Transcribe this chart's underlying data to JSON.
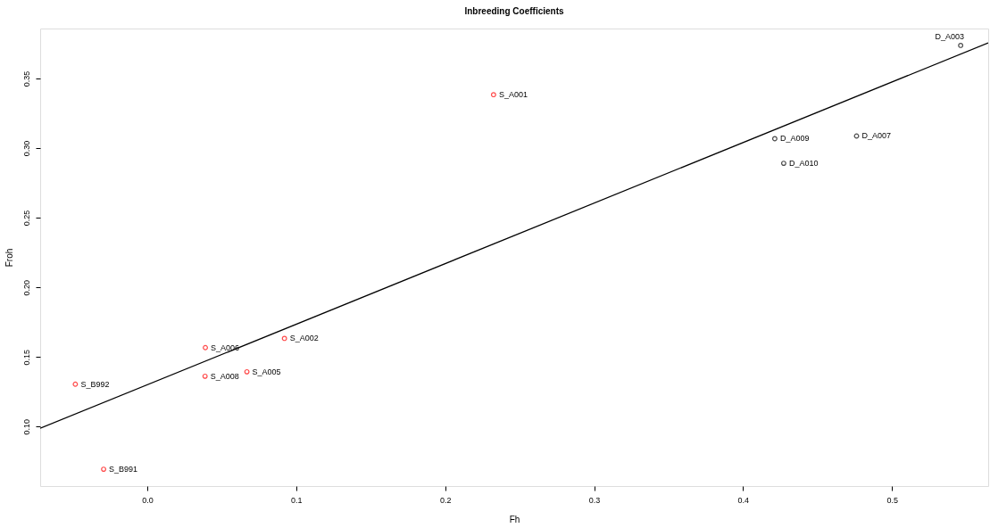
{
  "chart_data": {
    "type": "scatter",
    "title": "Inbreeding Coefficients",
    "xlabel": "Fh",
    "ylabel": "Froh",
    "xlim": [
      -0.0719,
      0.5646
    ],
    "ylim": [
      0.0572,
      0.3859
    ],
    "xticks": [
      {
        "value": 0,
        "label": "0.0"
      },
      0.1,
      0.2,
      0.3,
      0.4,
      0.5
    ],
    "yticks": [
      {
        "value": 0.1,
        "label": "0.10"
      },
      0.15,
      {
        "value": 0.2,
        "label": "0.20"
      },
      0.25,
      {
        "value": 0.3,
        "label": "0.30"
      },
      0.35
    ],
    "grid": false,
    "marker": "circle",
    "series": [
      {
        "color": "#ff0000",
        "x": [
          0.2325,
          0.039,
          0.0921,
          0.0669,
          0.0388,
          -0.0483,
          -0.0293
        ],
        "values": [
          0.3384,
          0.1567,
          0.1633,
          0.1393,
          0.1361,
          0.1304,
          0.0693
        ]
      },
      {
        "color": "#000000",
        "x": [
          0.5461,
          0.4213,
          0.4762,
          0.4273
        ],
        "values": [
          0.3738,
          0.3068,
          0.3087,
          0.2891
        ]
      },
      {
        "type": "line",
        "color": "#000000",
        "x": [
          -0.0719,
          0.5646
        ],
        "values": [
          0.0987,
          0.3756
        ],
        "line_style": "solid",
        "marker": "none"
      }
    ],
    "annotations": [
      {
        "text": "S_A001",
        "x": 0.2325,
        "y": 0.3384
      },
      {
        "text": "S_A006",
        "x": 0.039,
        "y": 0.1567
      },
      {
        "text": "S_A002",
        "x": 0.0921,
        "y": 0.1633
      },
      {
        "text": "S_A005",
        "x": 0.0669,
        "y": 0.1393
      },
      {
        "text": "S_A008",
        "x": 0.0388,
        "y": 0.1361
      },
      {
        "text": "S_B992",
        "x": -0.0483,
        "y": 0.1304
      },
      {
        "text": "S_B991",
        "x": -0.0293,
        "y": 0.0693
      },
      {
        "text": "D_A003",
        "x": 0.5461,
        "y": 0.3738
      },
      {
        "text": "D_A009",
        "x": 0.4213,
        "y": 0.3068
      },
      {
        "text": "D_A007",
        "x": 0.4762,
        "y": 0.3087
      },
      {
        "text": "D_A010",
        "x": 0.4273,
        "y": 0.2891
      }
    ]
  }
}
